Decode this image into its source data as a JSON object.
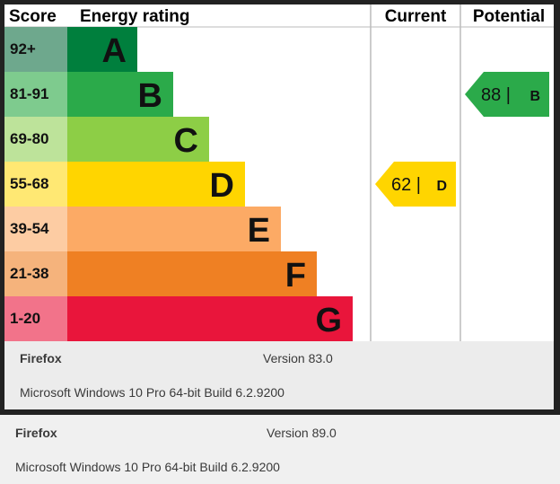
{
  "chart_data": {
    "type": "bar",
    "headers": {
      "score": "Score",
      "rating": "Energy rating",
      "current": "Current",
      "potential": "Potential"
    },
    "bands": [
      {
        "score": "92+",
        "letter": "A",
        "color": "#007f3d",
        "score_bg": "#6ea88d"
      },
      {
        "score": "81-91",
        "letter": "B",
        "color": "#2baa4a",
        "score_bg": "#7ecb8e"
      },
      {
        "score": "69-80",
        "letter": "C",
        "color": "#8dce46",
        "score_bg": "#bde39a"
      },
      {
        "score": "55-68",
        "letter": "D",
        "color": "#ffd500",
        "score_bg": "#ffe873"
      },
      {
        "score": "39-54",
        "letter": "E",
        "color": "#fcaa65",
        "score_bg": "#fdcca3"
      },
      {
        "score": "21-38",
        "letter": "F",
        "color": "#ef8023",
        "score_bg": "#f5b37c"
      },
      {
        "score": "1-20",
        "letter": "G",
        "color": "#e9153b",
        "score_bg": "#f2738a"
      }
    ],
    "current": {
      "value": 62,
      "letter": "D",
      "label": "62 |",
      "color": "#ffd500"
    },
    "potential": {
      "value": 88,
      "letter": "B",
      "label": "88 |",
      "color": "#2baa4a"
    }
  },
  "info_boxes": [
    {
      "browser": "Firefox",
      "version": "Version 83.0",
      "os": "Microsoft Windows 10 Pro 64-bit Build 6.2.9200"
    },
    {
      "browser": "Firefox",
      "version": "Version 89.0",
      "os": "Microsoft Windows 10 Pro 64-bit Build 6.2.9200"
    }
  ]
}
